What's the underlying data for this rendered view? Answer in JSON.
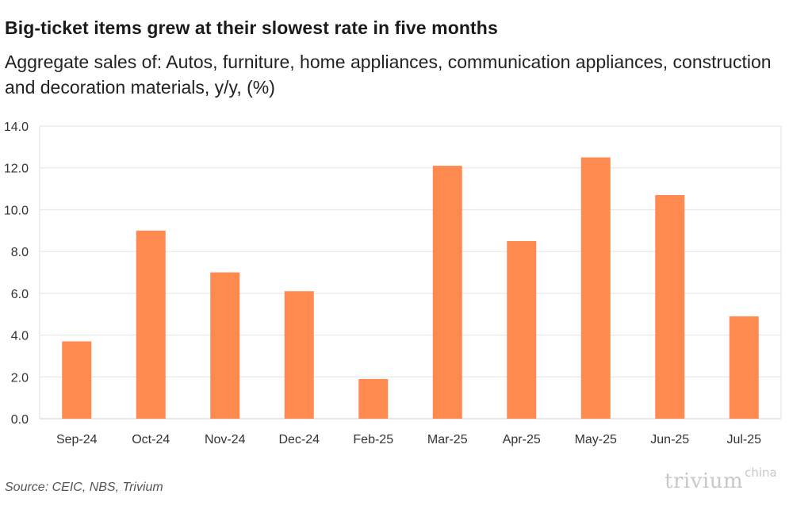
{
  "header": {
    "title": "Big-ticket items grew at their slowest rate in five months",
    "subtitle": "Aggregate sales of: Autos, furniture, home appliances, communication appliances, construction and decoration materials, y/y, (%)"
  },
  "footer": {
    "source": "Source: CEIC, NBS, Trivium",
    "logo_main": "trivium",
    "logo_sup": "china"
  },
  "colors": {
    "bar": "#ff8a50",
    "grid": "#e2e2e2",
    "axis": "#cfcfcf",
    "tick_text": "#333333"
  },
  "chart_data": {
    "type": "bar",
    "title": "Big-ticket items grew at their slowest rate in five months",
    "subtitle": "Aggregate sales of: Autos, furniture, home appliances, communication appliances, construction and decoration materials, y/y, (%)",
    "xlabel": "",
    "ylabel": "",
    "categories": [
      "Sep-24",
      "Oct-24",
      "Nov-24",
      "Dec-24",
      "Feb-25",
      "Mar-25",
      "Apr-25",
      "May-25",
      "Jun-25",
      "Jul-25"
    ],
    "values": [
      3.7,
      9.0,
      7.0,
      6.1,
      1.9,
      12.1,
      8.5,
      12.5,
      10.7,
      4.9
    ],
    "ylim": [
      0,
      14
    ],
    "yticks": [
      "0.0",
      "2.0",
      "4.0",
      "6.0",
      "8.0",
      "10.0",
      "12.0",
      "14.0"
    ],
    "grid": true,
    "legend": "none"
  }
}
